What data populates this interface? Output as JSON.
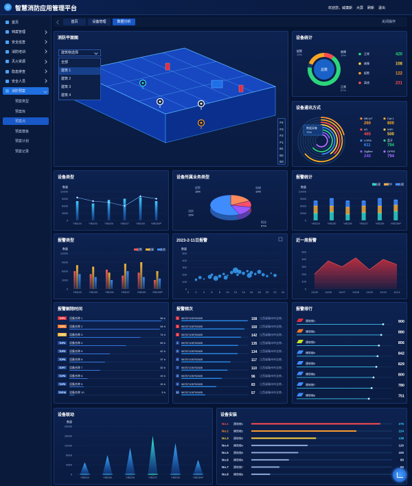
{
  "header": {
    "title": "智慧消防应用管理平台",
    "user": "欢迎您，威廉斯",
    "actions": [
      "大屏",
      "刷新",
      "退出"
    ]
  },
  "sidebar": {
    "items": [
      "首页",
      "档案管理",
      "安全巡查",
      "消防培训",
      "灭火资源",
      "隐患排查",
      "安全人员",
      "消防预案"
    ],
    "sub_items": [
      "预案类型",
      "预案库",
      "预案点",
      "预案模板",
      "预案计划",
      "预案记录"
    ]
  },
  "tabs": {
    "items": [
      "首页",
      "设备管理",
      "数据分析"
    ],
    "close": "关闭操作"
  },
  "floorplan": {
    "title": "消防平面图",
    "select": "建筑物选择",
    "options": [
      "全部",
      "建筑 1",
      "建筑 2",
      "建筑 3",
      "建筑 4"
    ],
    "floors": [
      "F4",
      "F3",
      "F2",
      "F1",
      "B1",
      "B2",
      "B3"
    ]
  },
  "device_stats": {
    "title": "设备统计",
    "center": "总数",
    "segments": [
      {
        "name": "报警",
        "value": 19,
        "label": "19%"
      },
      {
        "name": "故障",
        "value": 10,
        "label": "10%"
      },
      {
        "name": "正常",
        "value": 67,
        "label": "67%"
      }
    ],
    "legend": [
      {
        "name": "正常",
        "value": 420,
        "color": "#2bd67b"
      },
      {
        "name": "故障",
        "value": 108,
        "color": "#ffd23c"
      },
      {
        "name": "报警",
        "value": 122,
        "color": "#ff9a2e"
      },
      {
        "name": "离线",
        "value": 231,
        "color": "#ff4d4f"
      }
    ]
  },
  "comm": {
    "title": "设备通讯方式",
    "tooltip": {
      "name": "数据采集",
      "value": "70%"
    },
    "legend": [
      {
        "name": "NB-IoT",
        "value": 260,
        "color": "#ff9a2e"
      },
      {
        "name": "Cat.1",
        "value": 800,
        "color": "#ffb020"
      },
      {
        "name": "4G",
        "value": 465,
        "color": "#ff4d4f"
      },
      {
        "name": "WIFI",
        "value": 500,
        "color": "#ffd23c"
      },
      {
        "name": "LORA",
        "value": 611,
        "color": "#3f8cff"
      },
      {
        "name": "蓝牙",
        "value": 794,
        "color": "#2bd67b"
      },
      {
        "name": "ZigBee",
        "value": 240,
        "color": "#8a5cff"
      },
      {
        "name": "GPRS",
        "value": 794,
        "color": "#b06cff"
      }
    ]
  },
  "device_type": {
    "title": "设备类型",
    "y_label": "数量",
    "categories": [
      "YBD20",
      "YBD30",
      "YBD35",
      "YBD37",
      "YBD39",
      "YBD39P"
    ],
    "values": [
      8000,
      7000,
      8500,
      9000,
      9500,
      8000
    ],
    "line_values": [
      9500,
      8000,
      7500,
      6000,
      10000,
      9000
    ],
    "ylim": [
      0,
      12000
    ],
    "yticks": [
      0,
      3000,
      6000,
      9000,
      12000
    ]
  },
  "business": {
    "title": "设备所属业务类型",
    "segments": [
      {
        "name": "报警",
        "value": 18,
        "label": "18%",
        "color": "#ff8a5c"
      },
      {
        "name": "电梯",
        "value": 10,
        "label": "10%",
        "color": "#ff4d6d"
      },
      {
        "name": "消防",
        "value": 15,
        "label": "15%",
        "color": "#9b59ff"
      },
      {
        "name": "报送",
        "value": 57,
        "label": "57%",
        "color": "#3f8cff"
      }
    ]
  },
  "alarm_stats": {
    "title": "报警统计",
    "y_label": "数量",
    "categories": [
      "YBD20",
      "YBD30",
      "YBD35",
      "YBD37",
      "YBD39",
      "YBD39P"
    ],
    "ylim": [
      0,
      12000
    ],
    "yticks": [
      0,
      3000,
      6000,
      9000,
      12000
    ],
    "series": [
      {
        "name": "已处理",
        "color": "#2fd3c6",
        "values": [
          3000,
          3500,
          2500,
          3200,
          3000,
          3800
        ]
      },
      {
        "name": "处理中",
        "color": "#f0a93b",
        "values": [
          3000,
          2500,
          3000,
          2800,
          3000,
          2600
        ]
      },
      {
        "name": "未处理",
        "color": "#3f8cff",
        "values": [
          2000,
          3000,
          2500,
          2000,
          3000,
          2000
        ]
      }
    ]
  },
  "alarm_types": {
    "title": "报警类型",
    "y_label": "数量",
    "categories": [
      "YBD20",
      "YBD30",
      "YBD35",
      "YBD37",
      "YBD39",
      "YBD39P"
    ],
    "ylim": [
      0,
      12000
    ],
    "yticks": [
      0,
      3000,
      6000,
      9000,
      12000
    ],
    "series": [
      {
        "name": "报警",
        "color": "#f05a5a",
        "values": [
          6000,
          5000,
          6500,
          4500,
          5500,
          3000
        ]
      },
      {
        "name": "故障",
        "color": "#f5b53b",
        "values": [
          8000,
          7500,
          5500,
          8500,
          9000,
          6000
        ]
      },
      {
        "name": "其他",
        "color": "#3b8cff",
        "values": [
          5000,
          4000,
          3000,
          6000,
          4000,
          3500
        ]
      }
    ]
  },
  "daily_alarm": {
    "title": "2023-2-11日报警",
    "y_label": "数量",
    "xlim": [
      0,
      24
    ],
    "xticks": [
      0,
      2,
      4,
      6,
      8,
      10,
      12,
      14,
      16,
      18,
      20,
      22,
      24
    ],
    "ylim": [
      0,
      500
    ],
    "yticks": [
      0,
      100,
      200,
      300,
      400,
      500
    ],
    "x": [
      2,
      3,
      4,
      5.5,
      6,
      7,
      8,
      9,
      9.5,
      10,
      11,
      12,
      12.5,
      13,
      14,
      15,
      15.5,
      16,
      17,
      18,
      19,
      20,
      21,
      22
    ],
    "values": [
      130,
      160,
      140,
      170,
      200,
      150,
      180,
      210,
      160,
      190,
      230,
      260,
      200,
      240,
      220,
      250,
      190,
      230,
      210,
      240,
      200,
      180,
      220,
      190
    ],
    "sizes": [
      3,
      4,
      2,
      5,
      3,
      6,
      4,
      3,
      5,
      2,
      4,
      7,
      3,
      5,
      4,
      3,
      6,
      4,
      3,
      5,
      4,
      3,
      2,
      4
    ]
  },
  "weekly_alarm": {
    "title": "近一周报警",
    "categories": [
      "11/05",
      "11/06",
      "11/07",
      "11/08",
      "11/09",
      "11/10",
      "11/11"
    ],
    "values": [
      200,
      380,
      300,
      420,
      260,
      400,
      330
    ],
    "ylim": [
      0,
      500
    ],
    "yticks": [
      0,
      100,
      200,
      300,
      400,
      500
    ]
  },
  "clear_time": {
    "title": "报警解除时间",
    "rows": [
      {
        "rank": "TOP1",
        "name": "设备名称 1",
        "value": 96,
        "label": "96 h"
      },
      {
        "rank": "TOP2",
        "name": "设备名称 2",
        "value": 94,
        "label": "94 h"
      },
      {
        "rank": "TOP3",
        "name": "设备名称 3",
        "value": 74,
        "label": "74 h"
      },
      {
        "rank": "TOP4",
        "name": "设备名称 4",
        "value": 59,
        "label": "59 h"
      },
      {
        "rank": "TOP5",
        "name": "设备名称 5",
        "value": 42,
        "label": "42 h"
      },
      {
        "rank": "TOP6",
        "name": "设备名称 6",
        "value": 37,
        "label": "37 h"
      },
      {
        "rank": "TOP7",
        "name": "设备名称 7",
        "value": 32,
        "label": "32 h"
      },
      {
        "rank": "TOP8",
        "name": "设备名称 8",
        "value": 19,
        "label": "19 h"
      },
      {
        "rank": "TOP9",
        "name": "设备名称 9",
        "value": 15,
        "label": "15 h"
      },
      {
        "rank": "TOP10",
        "name": "设备名称 10",
        "value": 5,
        "label": "5 h"
      }
    ]
  },
  "frequency": {
    "title": "报警频次",
    "rows": [
      {
        "rank": "1",
        "id": "98757105792825",
        "value": 158,
        "place": "江西省赣州市全南..."
      },
      {
        "rank": "2",
        "id": "98757105792825",
        "value": 150,
        "place": "江西省赣州市全南..."
      },
      {
        "rank": "3",
        "id": "98757105792825",
        "value": 142,
        "place": "江西省赣州市全南..."
      },
      {
        "rank": "4",
        "id": "98757105792825",
        "value": 135,
        "place": "江西省赣州市全南..."
      },
      {
        "rank": "5",
        "id": "98757105792825",
        "value": 134,
        "place": "江西省赣州市全南..."
      },
      {
        "rank": "6",
        "id": "98757105792825",
        "value": 117,
        "place": "江西省赣州市全南..."
      },
      {
        "rank": "7",
        "id": "98757105792825",
        "value": 110,
        "place": "江西省赣州市全南..."
      },
      {
        "rank": "8",
        "id": "98757105792825",
        "value": 96,
        "place": "江西省赣州市全南..."
      },
      {
        "rank": "9",
        "id": "98757105792825",
        "value": 83,
        "place": "江西省赣州市全南..."
      },
      {
        "rank": "10",
        "id": "98757105792825",
        "value": 57,
        "place": "江西省赣州市全南..."
      }
    ]
  },
  "ranking": {
    "title": "报警排行",
    "rows": [
      {
        "name": "建筑物1",
        "value": 900
      },
      {
        "name": "建筑物2",
        "value": 880
      },
      {
        "name": "建筑物3",
        "value": 856
      },
      {
        "name": "建筑物4",
        "value": 842
      },
      {
        "name": "建筑物5",
        "value": 829
      },
      {
        "name": "建筑物6",
        "value": 800
      },
      {
        "name": "建筑物7",
        "value": 780
      },
      {
        "name": "建筑物8",
        "value": 751
      }
    ]
  },
  "linkage": {
    "title": "设备联动",
    "y_label": "数量",
    "categories": [
      "YBD20",
      "YBD30",
      "YBD35",
      "YBD37",
      "YBD39",
      "YBD39P"
    ],
    "values": [
      5000,
      8000,
      11000,
      16000,
      13000,
      6000
    ],
    "ylim": [
      0,
      20000
    ],
    "yticks": [
      0,
      4000,
      8000,
      12000,
      16000,
      20000
    ]
  },
  "install": {
    "title": "设备安装",
    "rows": [
      {
        "rank": "No.1",
        "name": "建筑物1",
        "value": 275
      },
      {
        "rank": "No.2",
        "name": "建筑物2",
        "value": 224
      },
      {
        "rank": "No.3",
        "name": "建筑物3",
        "value": 138
      },
      {
        "rank": "No.4",
        "name": "建筑物4",
        "value": 120
      },
      {
        "rank": "No.5",
        "name": "建筑物5",
        "value": 100
      },
      {
        "rank": "No.6",
        "name": "建筑物6",
        "value": 80
      },
      {
        "rank": "No.7",
        "name": "建筑物7",
        "value": 60
      },
      {
        "rank": "No.8",
        "name": "建筑物8",
        "value": 40
      }
    ]
  }
}
